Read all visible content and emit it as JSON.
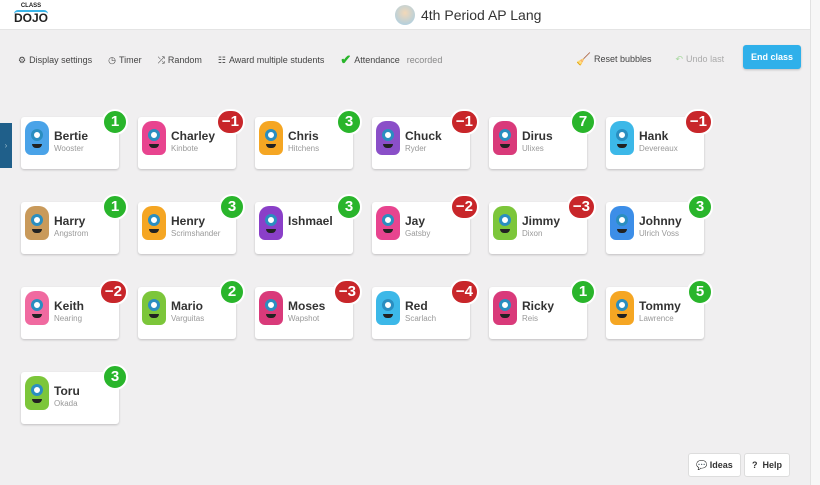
{
  "header": {
    "logo_top": "CLASS",
    "logo_bottom": "DOJO",
    "class_title": "4th Period AP Lang"
  },
  "toolbar": {
    "display_settings": "Display settings",
    "timer": "Timer",
    "random": "Random",
    "award_multiple": "Award multiple students",
    "attendance": "Attendance",
    "attendance_status": "recorded",
    "reset_bubbles": "Reset bubbles",
    "undo_last": "Undo last",
    "end_class": "End class"
  },
  "icons": {
    "display_settings": "gear-icon",
    "timer": "clock-icon",
    "random": "shuffle-icon",
    "award_multiple": "list-icon",
    "attendance": "checkmark-icon",
    "reset_bubbles": "broom-icon",
    "undo_last": "undo-arrow-icon",
    "ideas": "speech-bubble-icon",
    "help": "question-icon"
  },
  "colors": {
    "positive": "#29b52b",
    "negative": "#c8262a",
    "accent": "#2fb0ea"
  },
  "students": [
    {
      "first": "Bertie",
      "last": "Wooster",
      "points": "1",
      "color": "#4aa3e8"
    },
    {
      "first": "Charley",
      "last": "Kinbote",
      "points": "−1",
      "color": "#e8448f"
    },
    {
      "first": "Chris",
      "last": "Hitchens",
      "points": "3",
      "color": "#f5a623"
    },
    {
      "first": "Chuck",
      "last": "Ryder",
      "points": "−1",
      "color": "#8a4fc8"
    },
    {
      "first": "Dirus",
      "last": "Ulixes",
      "points": "7",
      "color": "#d93a7a"
    },
    {
      "first": "Hank",
      "last": "Devereaux",
      "points": "−1",
      "color": "#3cb8e8"
    },
    {
      "first": "Harry",
      "last": "Angstrom",
      "points": "1",
      "color": "#c99a5b"
    },
    {
      "first": "Henry",
      "last": "Scrimshander",
      "points": "3",
      "color": "#f5a623"
    },
    {
      "first": "Ishmael",
      "last": "",
      "points": "3",
      "color": "#8a3fc8"
    },
    {
      "first": "Jay",
      "last": "Gatsby",
      "points": "−2",
      "color": "#e8448f"
    },
    {
      "first": "Jimmy",
      "last": "Dixon",
      "points": "−3",
      "color": "#7cc63a"
    },
    {
      "first": "Johnny",
      "last": "Ulrich Voss",
      "points": "3",
      "color": "#3c8ee8"
    },
    {
      "first": "Keith",
      "last": "Nearing",
      "points": "−2",
      "color": "#f06aa0"
    },
    {
      "first": "Mario",
      "last": "Varguitas",
      "points": "2",
      "color": "#7cc63a"
    },
    {
      "first": "Moses",
      "last": "Wapshot",
      "points": "−3",
      "color": "#d93a7a"
    },
    {
      "first": "Red",
      "last": "Scarlach",
      "points": "−4",
      "color": "#3cb8e8"
    },
    {
      "first": "Ricky",
      "last": "Reis",
      "points": "1",
      "color": "#d93a7a"
    },
    {
      "first": "Tommy",
      "last": "Lawrence",
      "points": "5",
      "color": "#f5a623"
    },
    {
      "first": "Toru",
      "last": "Okada",
      "points": "3",
      "color": "#7cc63a"
    }
  ],
  "footer": {
    "ideas": "Ideas",
    "help": "Help"
  }
}
